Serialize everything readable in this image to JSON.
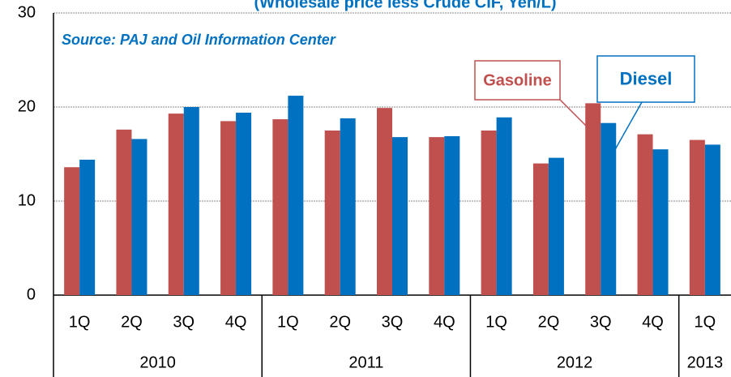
{
  "chart_data": {
    "type": "bar",
    "title": "(Wholesale price less Crude CIF, Yen/L)",
    "annotation": "Source: PAJ and Oil Information Center",
    "category_groups": [
      {
        "name": "2010",
        "categories": [
          "1Q",
          "2Q",
          "3Q",
          "4Q"
        ]
      },
      {
        "name": "2011",
        "categories": [
          "1Q",
          "2Q",
          "3Q",
          "4Q"
        ]
      },
      {
        "name": "2012",
        "categories": [
          "1Q",
          "2Q",
          "3Q",
          "4Q"
        ]
      },
      {
        "name": "2013",
        "categories": [
          "1Q"
        ]
      }
    ],
    "series": [
      {
        "name": "Gasoline",
        "color": "#c0504d",
        "values": [
          13.6,
          17.6,
          19.3,
          18.5,
          18.7,
          17.5,
          19.9,
          16.8,
          17.5,
          14.0,
          20.4,
          17.1,
          16.5
        ]
      },
      {
        "name": "Diesel",
        "color": "#0070c0",
        "values": [
          14.4,
          16.6,
          20.0,
          19.4,
          21.2,
          18.8,
          16.8,
          16.9,
          18.9,
          14.6,
          18.3,
          15.5,
          16.0
        ]
      }
    ],
    "ylim": [
      0,
      30
    ],
    "yticks": [
      0,
      10,
      20,
      30
    ],
    "grid": true
  }
}
